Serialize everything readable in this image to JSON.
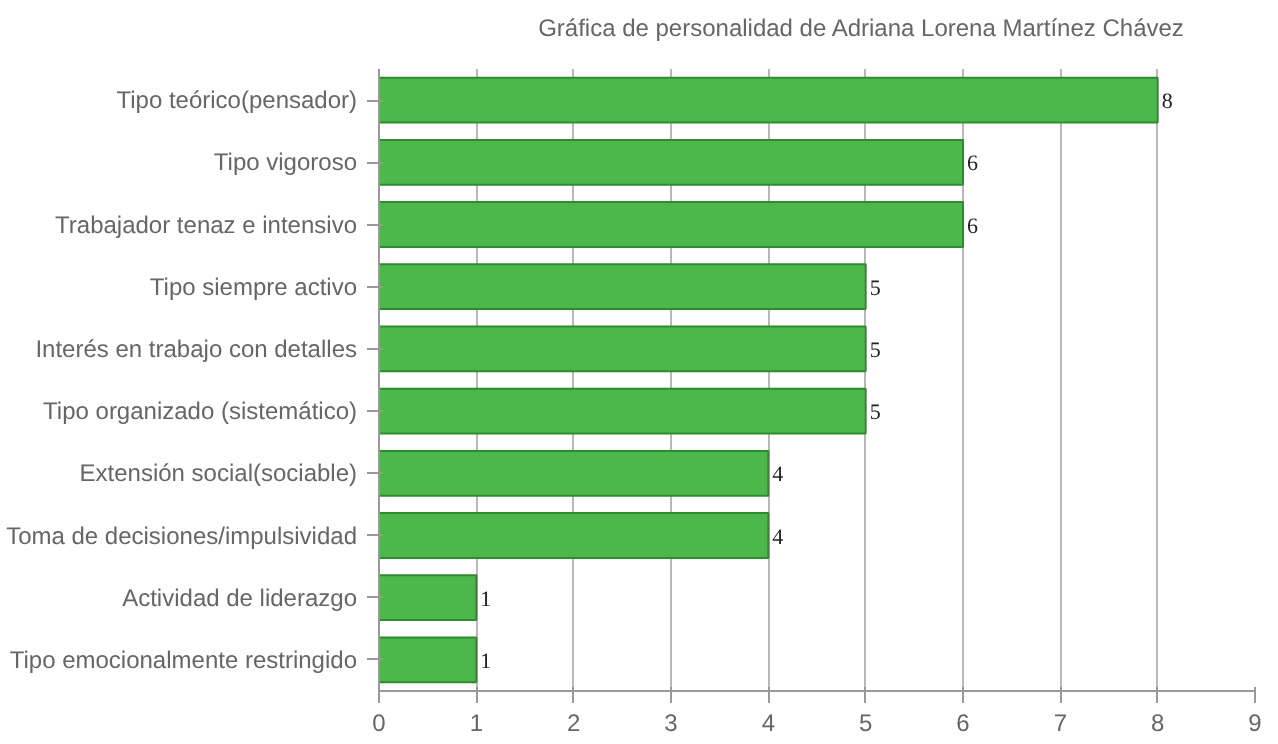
{
  "chart_data": {
    "type": "bar",
    "orientation": "horizontal",
    "categories": [
      "Tipo teórico(pensador)",
      "Tipo vigoroso",
      "Trabajador tenaz e intensivo",
      "Tipo siempre activo",
      "Interés en trabajo con detalles",
      "Tipo organizado (sistemático)",
      "Extensión social(sociable)",
      "Toma de decisiones/impulsividad",
      "Actividad de liderazgo",
      "Tipo emocionalmente restringido"
    ],
    "series": [
      {
        "name": "Gráfica de personalidad de Adriana Lorena Martínez Chávez",
        "color": "#4cb84c",
        "values": [
          8,
          6,
          6,
          5,
          5,
          5,
          4,
          4,
          1,
          1
        ]
      }
    ],
    "xlim": [
      0,
      9
    ],
    "xticks": [
      0,
      1,
      2,
      3,
      4,
      5,
      6,
      7,
      8,
      9
    ],
    "grid": true,
    "legend": "top",
    "data_labels": true
  }
}
